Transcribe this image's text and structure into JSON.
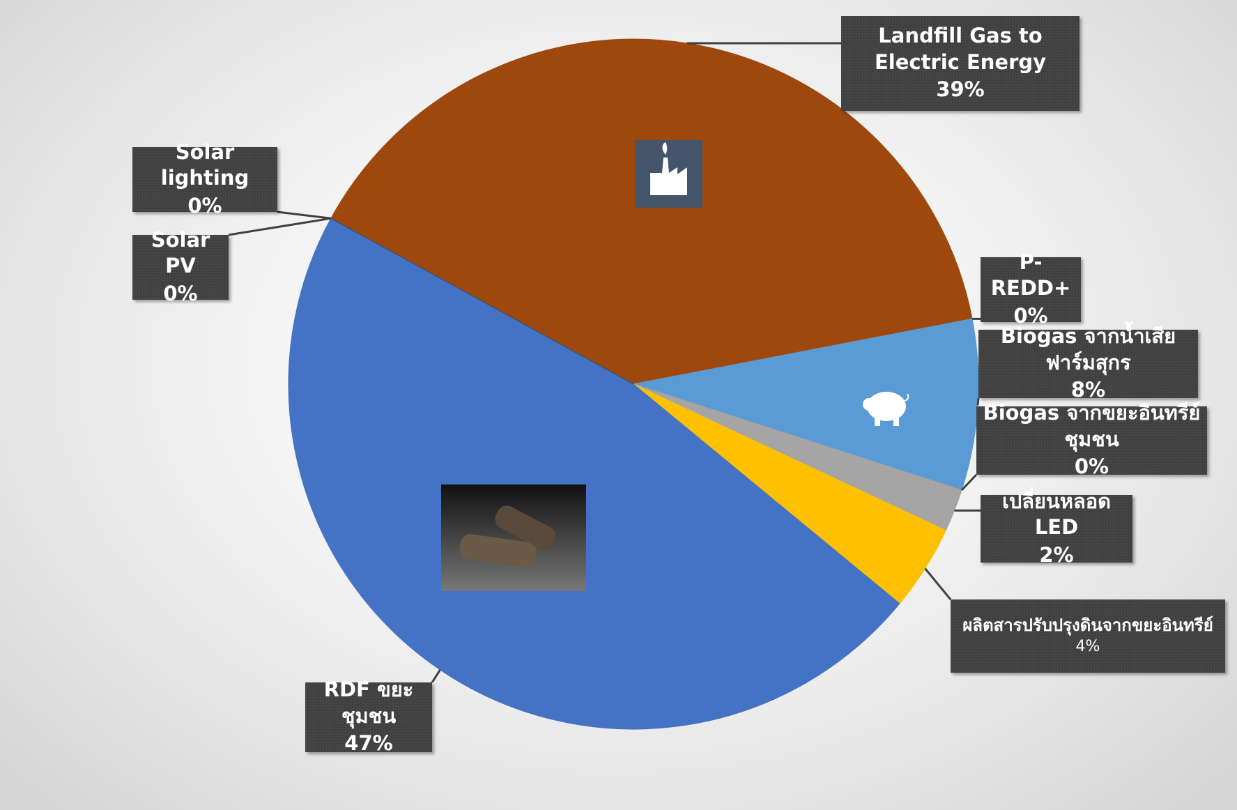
{
  "chart_data": {
    "type": "pie",
    "categories": [
      "Landfill Gas to Electric Energy",
      "P-REDD+",
      "Biogas จากน้ำเสียฟาร์มสุกร",
      "Biogas จากขยะอินทรีย์ชุมชน",
      "เปลี่ยนหลอด LED",
      "ผลิตสารปรับปรุงดินจากขยะอินทรีย์",
      "RDF ขยะชุมชน",
      "Solar PV",
      "Solar lighting"
    ],
    "values": [
      39,
      0,
      8,
      0,
      2,
      4,
      47,
      0,
      0
    ],
    "value_labels": [
      "39%",
      "0%",
      "8%",
      "0%",
      "2%",
      "4%",
      "47%",
      "0%",
      "0%"
    ],
    "colors": [
      "#9e480e",
      "#ed7d31",
      "#5b9bd5",
      "#ed7d31",
      "#a5a5a5",
      "#ffc000",
      "#4472c4",
      "#70ad47",
      "#264478"
    ]
  }
}
